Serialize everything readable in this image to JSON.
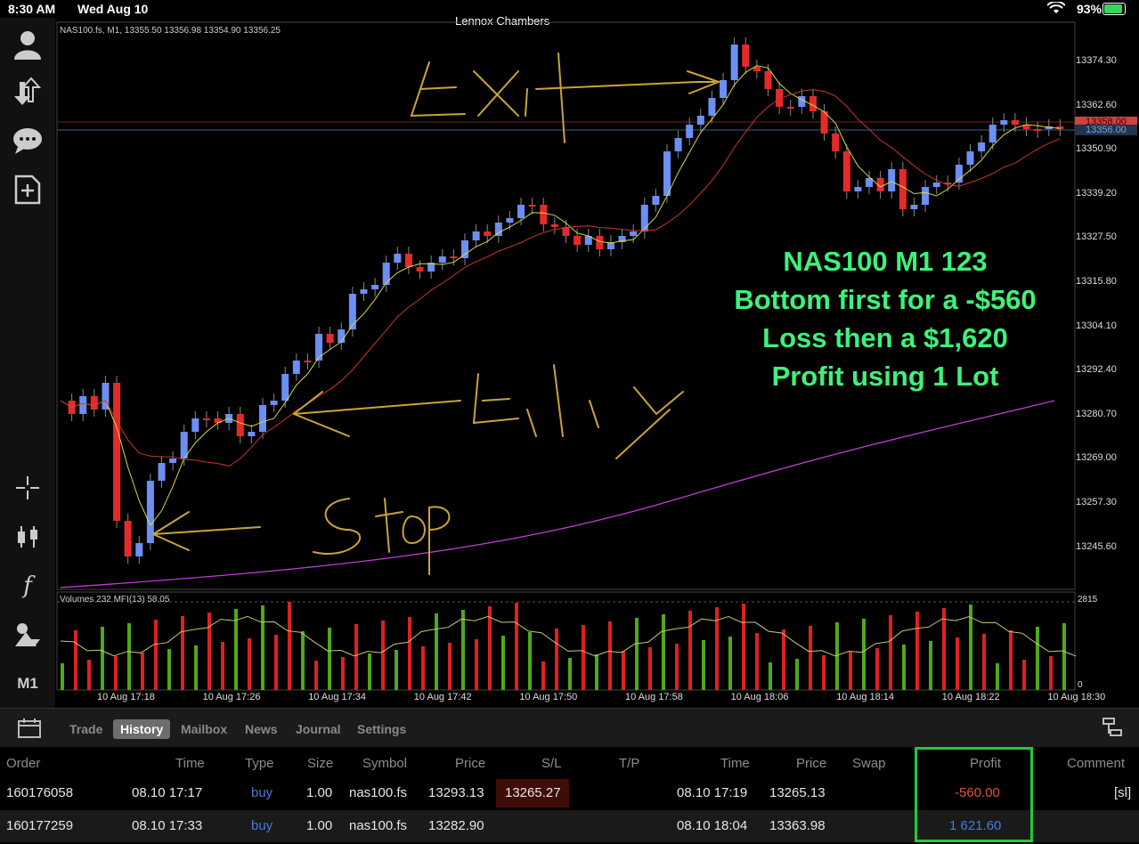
{
  "status_bar": {
    "time": "8:30 AM",
    "date": "Wed Aug 10",
    "owner": "Lennox Chambers",
    "battery": "93%",
    "battery_level": 0.93
  },
  "left_toolbar": {
    "items": [
      {
        "icon": "account-icon"
      },
      {
        "icon": "deposit-withdraw-icon"
      },
      {
        "icon": "chat-icon"
      },
      {
        "icon": "new-order-icon"
      },
      {
        "icon": "crosshair-icon"
      },
      {
        "icon": "candlestick-icon"
      },
      {
        "icon": "indicators-icon"
      },
      {
        "icon": "objects-icon"
      }
    ],
    "timeframe_label": "M1"
  },
  "chart": {
    "info": "NAS100.fs, M1, 13355.50 13356.98 13354.90 13356.25",
    "mfi_info": "Volumes 232 MFI(13) 58.05",
    "y_ticks": [
      "13374.30",
      "13362.60",
      "13350.90",
      "13339.20",
      "13327.50",
      "13315.80",
      "13304.10",
      "13292.40",
      "13280.70",
      "13269.00",
      "13257.30",
      "13245.60"
    ],
    "x_ticks": [
      "10 Aug 17:18",
      "10 Aug 17:26",
      "10 Aug 17:34",
      "10 Aug 17:42",
      "10 Aug 17:50",
      "10 Aug 17:58",
      "10 Aug 18:06",
      "10 Aug 18:14",
      "10 Aug 18:22",
      "10 Aug 18:30"
    ],
    "price_tags": [
      {
        "value": "13358.00",
        "color": "#d24040"
      },
      {
        "value": "13356.00",
        "color": "#7aa0d8"
      }
    ],
    "volume_scale": {
      "max": "2815",
      "min": "0"
    },
    "annotation_lines": [
      "NAS100 M1 123",
      "Bottom first for a -$560",
      "Loss then a $1,620",
      "Profit using 1 Lot"
    ],
    "handwritten": [
      "Exit",
      "Entry",
      "Stop"
    ],
    "colors": {
      "bull": "#6b8ff5",
      "bear": "#e62a2a",
      "ma_fast": "#d7d741",
      "ma_slow": "#c8352a",
      "ma_long": "#c23bd8",
      "vol_up": "#4fa81a",
      "vol_down": "#e02020",
      "annotation": "#3df27a",
      "handwriting": "#c8a634"
    }
  },
  "tabs": {
    "items": [
      "Trade",
      "History",
      "Mailbox",
      "News",
      "Journal",
      "Settings"
    ],
    "active": "History"
  },
  "history_table": {
    "headers": [
      "Order",
      "Time",
      "Type",
      "Size",
      "Symbol",
      "Price",
      "S/L",
      "T/P",
      "Time",
      "Price",
      "Swap",
      "Profit",
      "Comment"
    ],
    "rows": [
      {
        "order": "160176058",
        "open_time": "08.10 17:17",
        "type": "buy",
        "size": "1.00",
        "symbol": "nas100.fs",
        "open_price": "13293.13",
        "sl": "13265.27",
        "tp": "",
        "close_time": "08.10 17:19",
        "close_price": "13265.13",
        "swap": "",
        "profit": "-560.00",
        "comment": "[sl]"
      },
      {
        "order": "160177259",
        "open_time": "08.10 17:33",
        "type": "buy",
        "size": "1.00",
        "symbol": "nas100.fs",
        "open_price": "13282.90",
        "sl": "",
        "tp": "",
        "close_time": "08.10 18:04",
        "close_price": "13363.98",
        "swap": "",
        "profit": "1 621.60",
        "comment": ""
      }
    ]
  }
}
